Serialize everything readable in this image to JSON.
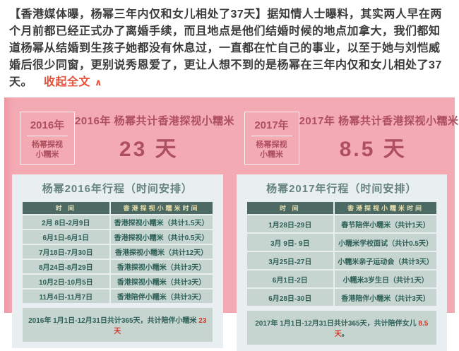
{
  "post": {
    "highlight": "【香港媒体曝，杨幂三年内仅和女儿相处了37天】",
    "body": "据知情人士曝料，其实两人早在两个月前都已经正式办了离婚手续，而且地点是他们结婚时候的地点加拿大，我们都知道杨幂从结婚到生孩子她都没有休息过，一直都在忙自己的事业，以至于她与刘恺威婚后很少同窗，更别说秀恩爱了，更让人想不到的是杨幂在三年内仅和女儿相处了37天。",
    "collapse_label": "收起全文",
    "collapse_icon": "∧"
  },
  "colors": {
    "pink_background": "#f4aab3",
    "rose_text": "#ad4f5e",
    "card_background": "#e9eff1",
    "table_header_bg": "#4c6a63",
    "table_header_text": "#e6dfae",
    "table_row_bg": "#c6d5cf",
    "table_text": "#2e6057",
    "red_highlight": "#cf372c",
    "link_red": "#e5503a"
  },
  "panels": [
    {
      "year_label": "2016年",
      "year_sub_line1": "杨幂探视",
      "year_sub_line2": "小糯米",
      "headline": "2016年 杨幂共计香港探视小糯米",
      "days_value": "23 天",
      "table_title": "杨幂2016年行程（时间安排）",
      "columns": [
        "时 间",
        "香港探视小糯米时间"
      ],
      "rows": [
        {
          "time": "2月 8日-2月9日",
          "event": "香港探视小糯米（共计1.5天）"
        },
        {
          "time": "6月1日-6月1日",
          "event": "香港探视小糯米（共计0.5天）"
        },
        {
          "time": "7月18日-7月30日",
          "event": "香港探视小糯米（共计12天）"
        },
        {
          "time": "8月24日-8月29日",
          "event": "香港探视小糯米（共计3天）"
        },
        {
          "time": "10月2日-10月5日",
          "event": "香港探视小糯米（共计3天）"
        },
        {
          "time": "11月4日-11月7日",
          "event": "香港陪伴小糯米（共计3天）"
        }
      ],
      "note_prefix": "2016年 1月1日-12月31日共计365天，共计陪伴小糯米 ",
      "note_highlight": "23 天",
      "note_suffix": ""
    },
    {
      "year_label": "2017年",
      "year_sub_line1": "杨幂探视",
      "year_sub_line2": "小糯米",
      "headline": "2017年 杨幂共计香港探视小糯米",
      "days_value": "8.5 天",
      "table_title": "杨幂2017年行程（时间安排）",
      "columns": [
        "时 间",
        "香港探视小糯米时间"
      ],
      "rows": [
        {
          "time": "1月28日-29日",
          "event": "春节陪伴小糯米（共计1天）"
        },
        {
          "time": "3月 9日- 9日",
          "event": "小糯米学校面试（共计0.5天）"
        },
        {
          "time": "3月25日-27日",
          "event": "小糯米亲子运动会（共计3天）"
        },
        {
          "time": "6月1日-2日",
          "event": "小糯米3岁生日（共计1天）"
        },
        {
          "time": "6月28日-30日",
          "event": "香港陪伴小糯米（共计3天）"
        }
      ],
      "note_prefix": "2017年 1月1日-12月31日共计365天，共计陪伴女儿 ",
      "note_highlight": "8.5天",
      "note_suffix": "。"
    }
  ]
}
